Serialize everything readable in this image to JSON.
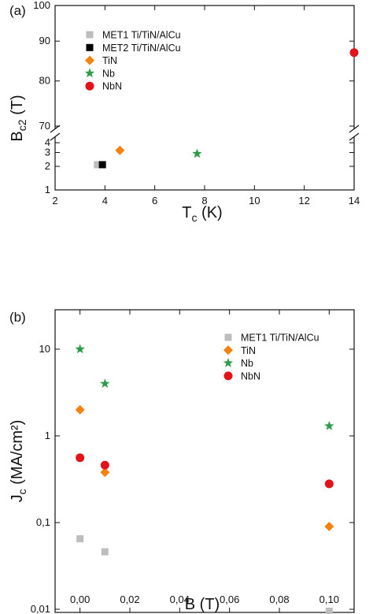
{
  "chart_data": [
    {
      "type": "scatter",
      "panel_label": "(a)",
      "xlabel_main": "T",
      "xlabel_sub": "c",
      "xlabel_unit": " (K)",
      "ylabel_main": "B",
      "ylabel_sub": "c2",
      "ylabel_unit": " (T)",
      "xlim": [
        2,
        14
      ],
      "xticks": [
        "2",
        "4",
        "6",
        "8",
        "10",
        "12",
        "14"
      ],
      "yticks_lower": [
        "1",
        "2",
        "3",
        "4"
      ],
      "yticks_upper": [
        "70",
        "80",
        "90",
        "100"
      ],
      "y_scale": "log, broken axis (1–4.5 and 70–100)",
      "legend_position": "top-left",
      "series": [
        {
          "name": "MET1 Ti/TiN/AlCu",
          "marker": "square",
          "color": "#bdbdbd",
          "points": [
            {
              "x": 3.7,
              "y": 2.1
            }
          ]
        },
        {
          "name": "MET2 Ti/TiN/AlCu",
          "marker": "square",
          "color": "#000000",
          "points": [
            {
              "x": 3.9,
              "y": 2.1
            }
          ]
        },
        {
          "name": "TiN",
          "marker": "diamond",
          "color": "#f5820f",
          "points": [
            {
              "x": 4.6,
              "y": 3.2
            }
          ]
        },
        {
          "name": "Nb",
          "marker": "star",
          "color": "#2e9a4a",
          "points": [
            {
              "x": 7.7,
              "y": 2.9
            }
          ]
        },
        {
          "name": "NbN",
          "marker": "circle",
          "color": "#e3131b",
          "points": [
            {
              "x": 14.0,
              "y": 87
            }
          ]
        }
      ]
    },
    {
      "type": "scatter",
      "panel_label": "(b)",
      "xlabel": "B (T)",
      "ylabel_main": "J",
      "ylabel_sub": "c",
      "ylabel_unit": " (MA/cm²)",
      "xlim": [
        -0.01,
        0.11
      ],
      "xticks": [
        "0,00",
        "0,02",
        "0,04",
        "0,06",
        "0,08",
        "0,10"
      ],
      "yticks": [
        "0,01",
        "0,1",
        "1",
        "10"
      ],
      "y_scale": "log",
      "ylim": [
        0.007,
        50
      ],
      "legend_position": "top-right",
      "series": [
        {
          "name": "MET1 Ti/TiN/AlCu",
          "marker": "square",
          "color": "#bdbdbd",
          "points": [
            {
              "x": 0.0,
              "y": 0.065
            },
            {
              "x": 0.01,
              "y": 0.046
            },
            {
              "x": 0.1,
              "y": 0.0095
            }
          ]
        },
        {
          "name": "TiN",
          "marker": "diamond",
          "color": "#f5820f",
          "points": [
            {
              "x": 0.0,
              "y": 2.0
            },
            {
              "x": 0.01,
              "y": 0.38
            },
            {
              "x": 0.1,
              "y": 0.09
            }
          ]
        },
        {
          "name": "Nb",
          "marker": "star",
          "color": "#2e9a4a",
          "points": [
            {
              "x": 0.0,
              "y": 10
            },
            {
              "x": 0.01,
              "y": 4.0
            },
            {
              "x": 0.1,
              "y": 1.3
            }
          ]
        },
        {
          "name": "NbN",
          "marker": "circle",
          "color": "#e3131b",
          "points": [
            {
              "x": 0.0,
              "y": 0.56
            },
            {
              "x": 0.01,
              "y": 0.46
            },
            {
              "x": 0.1,
              "y": 0.28
            }
          ]
        }
      ]
    }
  ]
}
